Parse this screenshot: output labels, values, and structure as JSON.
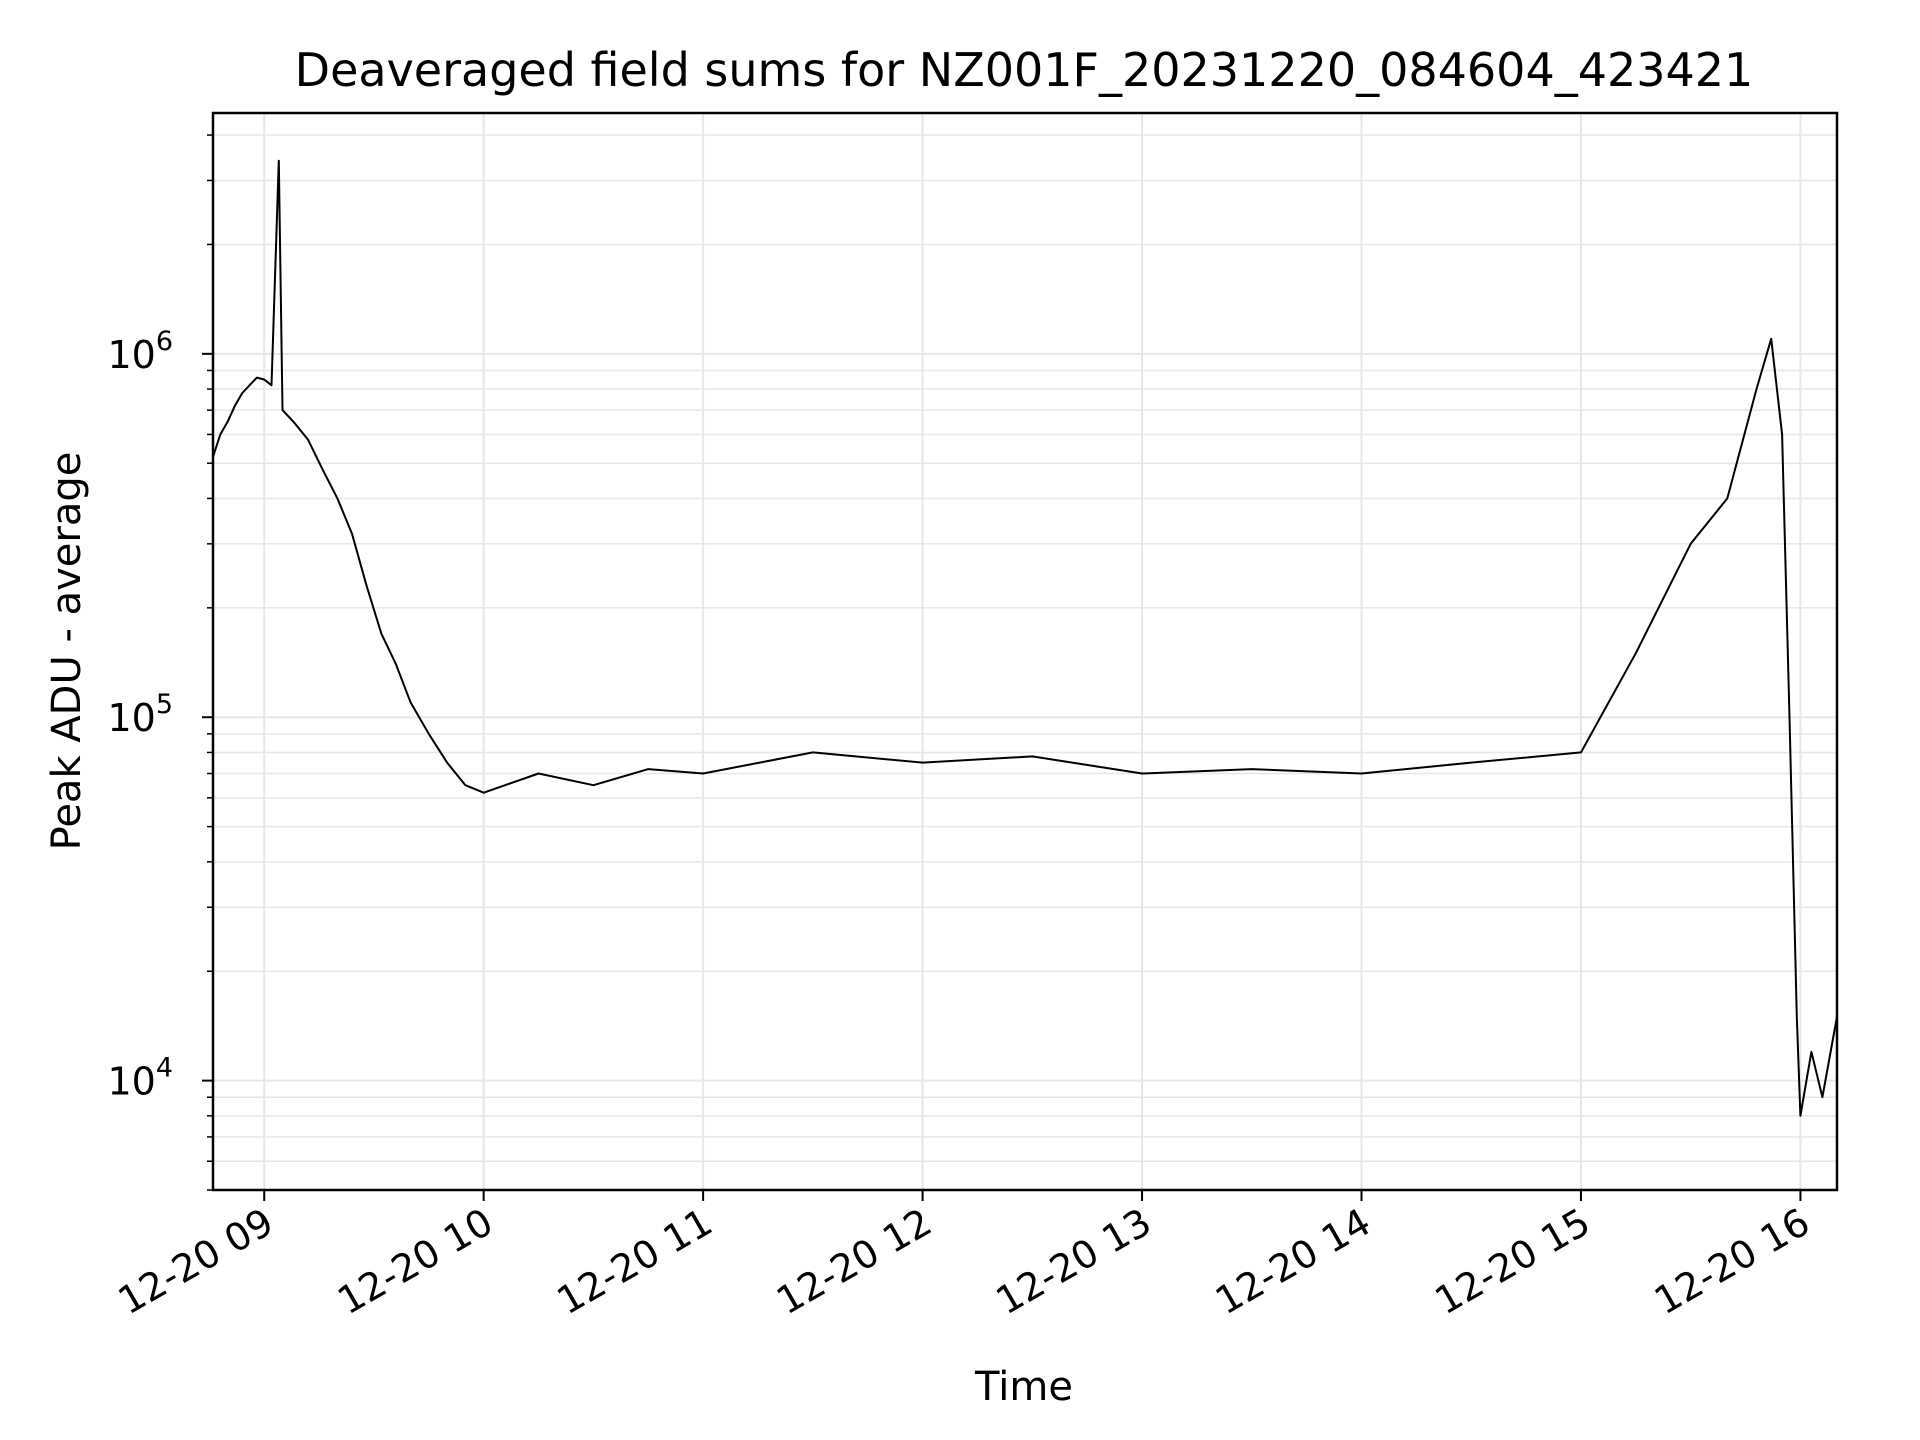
{
  "chart_data": {
    "type": "line",
    "title": "Deaveraged field sums for NZ001F_20231220_084604_423421",
    "xlabel": "Time",
    "ylabel": "Peak ADU - average",
    "yscale": "log",
    "ylim": [
      5000,
      4600000
    ],
    "xlim": [
      "2023-12-20 08:46",
      "2023-12-20 16:10"
    ],
    "grid": true,
    "line_color": "#000000",
    "grid_color": "#e6e6e6",
    "x_ticks": [
      {
        "label": "12-20 09",
        "time": "2023-12-20 09:00"
      },
      {
        "label": "12-20 10",
        "time": "2023-12-20 10:00"
      },
      {
        "label": "12-20 11",
        "time": "2023-12-20 11:00"
      },
      {
        "label": "12-20 12",
        "time": "2023-12-20 12:00"
      },
      {
        "label": "12-20 13",
        "time": "2023-12-20 13:00"
      },
      {
        "label": "12-20 14",
        "time": "2023-12-20 14:00"
      },
      {
        "label": "12-20 15",
        "time": "2023-12-20 15:00"
      },
      {
        "label": "12-20 16",
        "time": "2023-12-20 16:00"
      }
    ],
    "y_ticks": [
      {
        "value": 10000,
        "base": "10",
        "exp": "4"
      },
      {
        "value": 100000,
        "base": "10",
        "exp": "5"
      },
      {
        "value": 1000000,
        "base": "10",
        "exp": "6"
      }
    ],
    "series": [
      {
        "points": [
          [
            "2023-12-20 08:46",
            520000
          ],
          [
            "2023-12-20 08:48",
            600000
          ],
          [
            "2023-12-20 08:50",
            650000
          ],
          [
            "2023-12-20 08:52",
            720000
          ],
          [
            "2023-12-20 08:54",
            780000
          ],
          [
            "2023-12-20 08:56",
            820000
          ],
          [
            "2023-12-20 08:58",
            860000
          ],
          [
            "2023-12-20 09:00",
            850000
          ],
          [
            "2023-12-20 09:02",
            820000
          ],
          [
            "2023-12-20 09:04",
            3400000
          ],
          [
            "2023-12-20 09:05",
            700000
          ],
          [
            "2023-12-20 09:08",
            650000
          ],
          [
            "2023-12-20 09:12",
            580000
          ],
          [
            "2023-12-20 09:16",
            480000
          ],
          [
            "2023-12-20 09:20",
            400000
          ],
          [
            "2023-12-20 09:24",
            320000
          ],
          [
            "2023-12-20 09:28",
            230000
          ],
          [
            "2023-12-20 09:32",
            170000
          ],
          [
            "2023-12-20 09:36",
            140000
          ],
          [
            "2023-12-20 09:40",
            110000
          ],
          [
            "2023-12-20 09:45",
            90000
          ],
          [
            "2023-12-20 09:50",
            75000
          ],
          [
            "2023-12-20 09:55",
            65000
          ],
          [
            "2023-12-20 10:00",
            62000
          ],
          [
            "2023-12-20 10:15",
            70000
          ],
          [
            "2023-12-20 10:30",
            65000
          ],
          [
            "2023-12-20 10:45",
            72000
          ],
          [
            "2023-12-20 11:00",
            70000
          ],
          [
            "2023-12-20 11:30",
            80000
          ],
          [
            "2023-12-20 12:00",
            75000
          ],
          [
            "2023-12-20 12:30",
            78000
          ],
          [
            "2023-12-20 13:00",
            70000
          ],
          [
            "2023-12-20 13:30",
            72000
          ],
          [
            "2023-12-20 14:00",
            70000
          ],
          [
            "2023-12-20 14:30",
            75000
          ],
          [
            "2023-12-20 15:00",
            80000
          ],
          [
            "2023-12-20 15:15",
            150000
          ],
          [
            "2023-12-20 15:30",
            300000
          ],
          [
            "2023-12-20 15:40",
            400000
          ],
          [
            "2023-12-20 15:48",
            800000
          ],
          [
            "2023-12-20 15:52",
            1100000
          ],
          [
            "2023-12-20 15:55",
            600000
          ],
          [
            "2023-12-20 15:57",
            100000
          ],
          [
            "2023-12-20 15:59",
            15000
          ],
          [
            "2023-12-20 16:00",
            8000
          ],
          [
            "2023-12-20 16:03",
            12000
          ],
          [
            "2023-12-20 16:06",
            9000
          ],
          [
            "2023-12-20 16:10",
            15000
          ]
        ]
      }
    ]
  }
}
